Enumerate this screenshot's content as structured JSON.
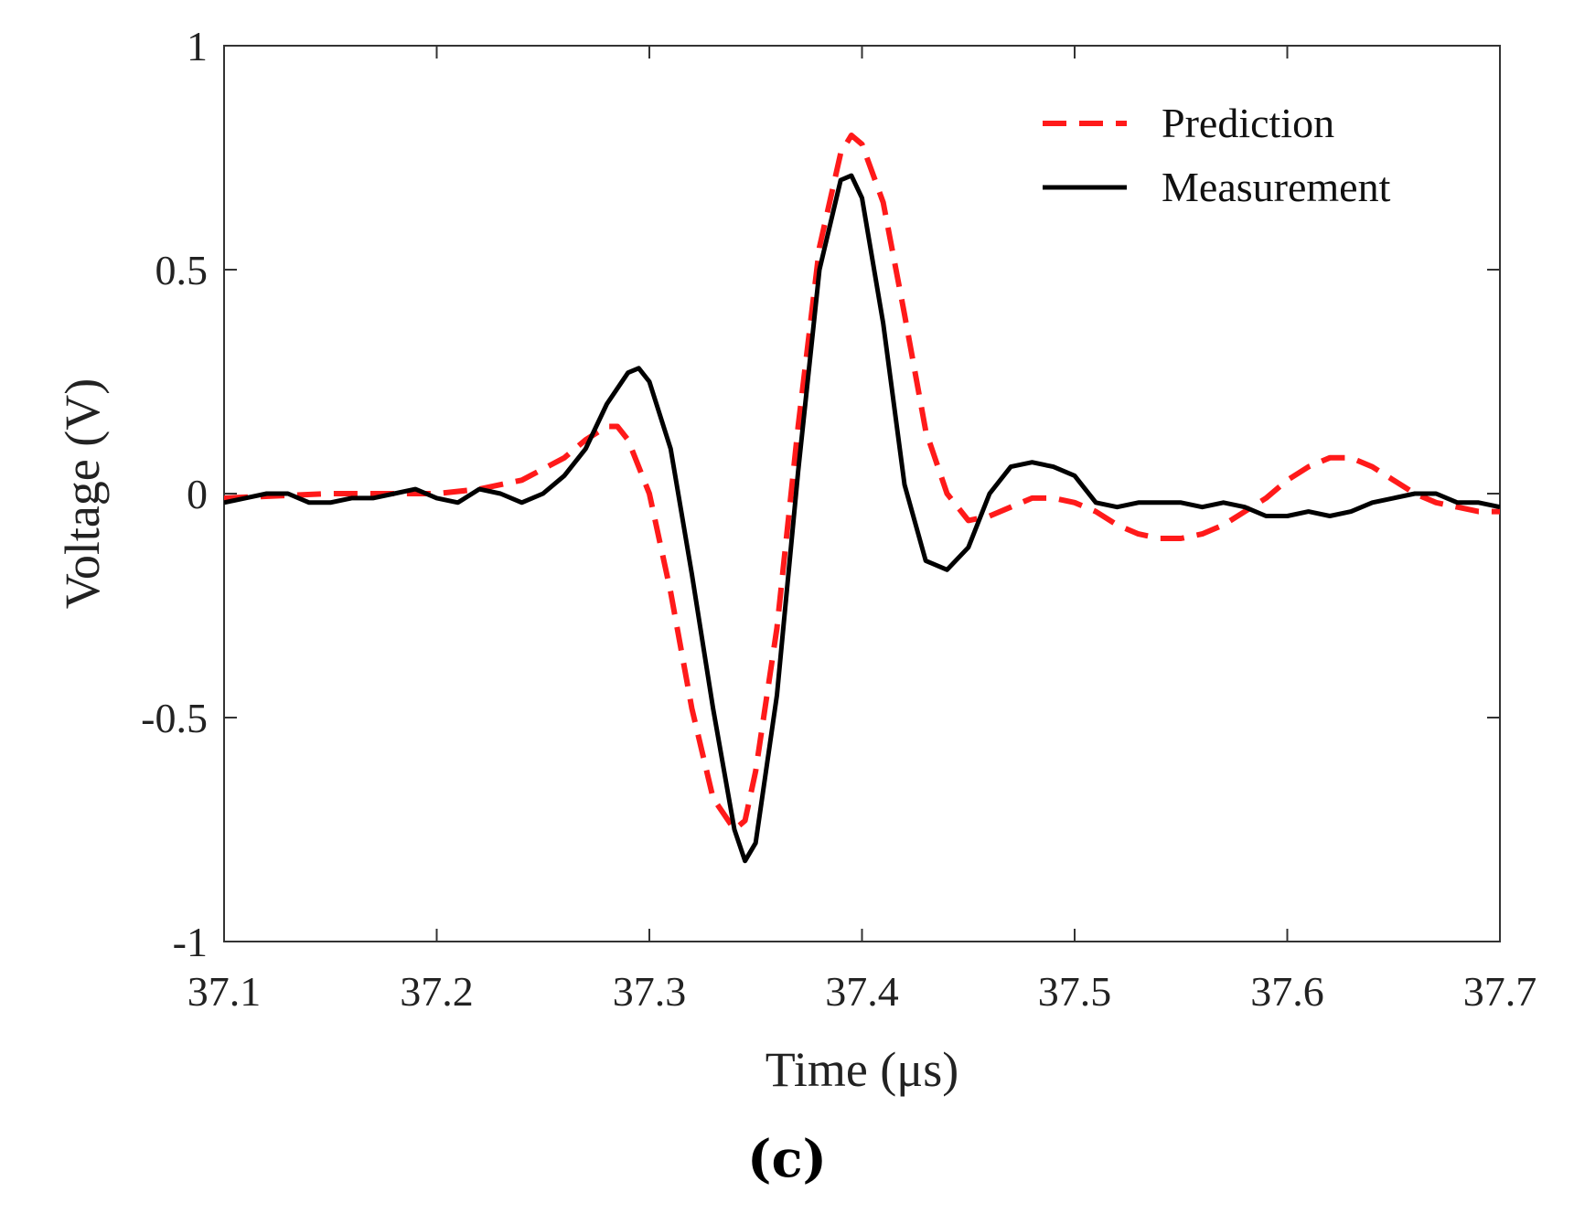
{
  "chart_data": {
    "type": "line",
    "title": "",
    "xlabel": "Time (μs)",
    "ylabel": "Voltage (V)",
    "xlim": [
      37.1,
      37.7
    ],
    "ylim": [
      -1,
      1
    ],
    "xticks": [
      37.1,
      37.2,
      37.3,
      37.4,
      37.5,
      37.6,
      37.7
    ],
    "xtick_labels": [
      "37.1",
      "37.2",
      "37.3",
      "37.4",
      "37.5",
      "37.6",
      "37.7"
    ],
    "yticks": [
      -1,
      -0.5,
      0,
      0.5,
      1
    ],
    "ytick_labels": [
      "-1",
      "-0.5",
      "0",
      "0.5",
      "1"
    ],
    "grid": false,
    "legend_position": "top-right",
    "panel_label": "(c)",
    "series": [
      {
        "name": "Prediction",
        "color": "#ff1a1a",
        "style": "dashed",
        "x": [
          37.1,
          37.15,
          37.2,
          37.22,
          37.24,
          37.26,
          37.27,
          37.28,
          37.285,
          37.29,
          37.3,
          37.31,
          37.32,
          37.33,
          37.34,
          37.345,
          37.35,
          37.36,
          37.37,
          37.38,
          37.39,
          37.395,
          37.4,
          37.41,
          37.42,
          37.43,
          37.44,
          37.45,
          37.46,
          37.47,
          37.48,
          37.49,
          37.5,
          37.51,
          37.52,
          37.53,
          37.54,
          37.55,
          37.56,
          37.57,
          37.58,
          37.59,
          37.6,
          37.61,
          37.62,
          37.63,
          37.64,
          37.65,
          37.66,
          37.67,
          37.68,
          37.69,
          37.7
        ],
        "values": [
          -0.01,
          0.0,
          0.0,
          0.01,
          0.03,
          0.08,
          0.12,
          0.15,
          0.15,
          0.12,
          0.0,
          -0.22,
          -0.48,
          -0.68,
          -0.75,
          -0.73,
          -0.62,
          -0.3,
          0.15,
          0.55,
          0.76,
          0.8,
          0.78,
          0.65,
          0.4,
          0.14,
          0.0,
          -0.06,
          -0.05,
          -0.03,
          -0.01,
          -0.01,
          -0.02,
          -0.04,
          -0.07,
          -0.09,
          -0.1,
          -0.1,
          -0.09,
          -0.07,
          -0.04,
          -0.01,
          0.03,
          0.06,
          0.08,
          0.08,
          0.06,
          0.03,
          0.0,
          -0.02,
          -0.03,
          -0.04,
          -0.04
        ]
      },
      {
        "name": "Measurement",
        "color": "#000000",
        "style": "solid",
        "x": [
          37.1,
          37.11,
          37.12,
          37.13,
          37.14,
          37.15,
          37.16,
          37.17,
          37.18,
          37.19,
          37.2,
          37.21,
          37.22,
          37.23,
          37.24,
          37.25,
          37.26,
          37.27,
          37.28,
          37.29,
          37.295,
          37.3,
          37.31,
          37.32,
          37.33,
          37.34,
          37.345,
          37.35,
          37.36,
          37.37,
          37.38,
          37.39,
          37.395,
          37.4,
          37.41,
          37.42,
          37.43,
          37.44,
          37.45,
          37.46,
          37.47,
          37.48,
          37.49,
          37.5,
          37.51,
          37.52,
          37.53,
          37.54,
          37.55,
          37.56,
          37.57,
          37.58,
          37.59,
          37.6,
          37.61,
          37.62,
          37.63,
          37.64,
          37.65,
          37.66,
          37.67,
          37.68,
          37.69,
          37.7
        ],
        "values": [
          -0.02,
          -0.01,
          0.0,
          0.0,
          -0.02,
          -0.02,
          -0.01,
          -0.01,
          0.0,
          0.01,
          -0.01,
          -0.02,
          0.01,
          0.0,
          -0.02,
          0.0,
          0.04,
          0.1,
          0.2,
          0.27,
          0.28,
          0.25,
          0.1,
          -0.18,
          -0.48,
          -0.75,
          -0.82,
          -0.78,
          -0.45,
          0.05,
          0.5,
          0.7,
          0.71,
          0.66,
          0.38,
          0.02,
          -0.15,
          -0.17,
          -0.12,
          0.0,
          0.06,
          0.07,
          0.06,
          0.04,
          -0.02,
          -0.03,
          -0.02,
          -0.02,
          -0.02,
          -0.03,
          -0.02,
          -0.03,
          -0.05,
          -0.05,
          -0.04,
          -0.05,
          -0.04,
          -0.02,
          -0.01,
          0.0,
          0.0,
          -0.02,
          -0.02,
          -0.03
        ]
      }
    ]
  }
}
